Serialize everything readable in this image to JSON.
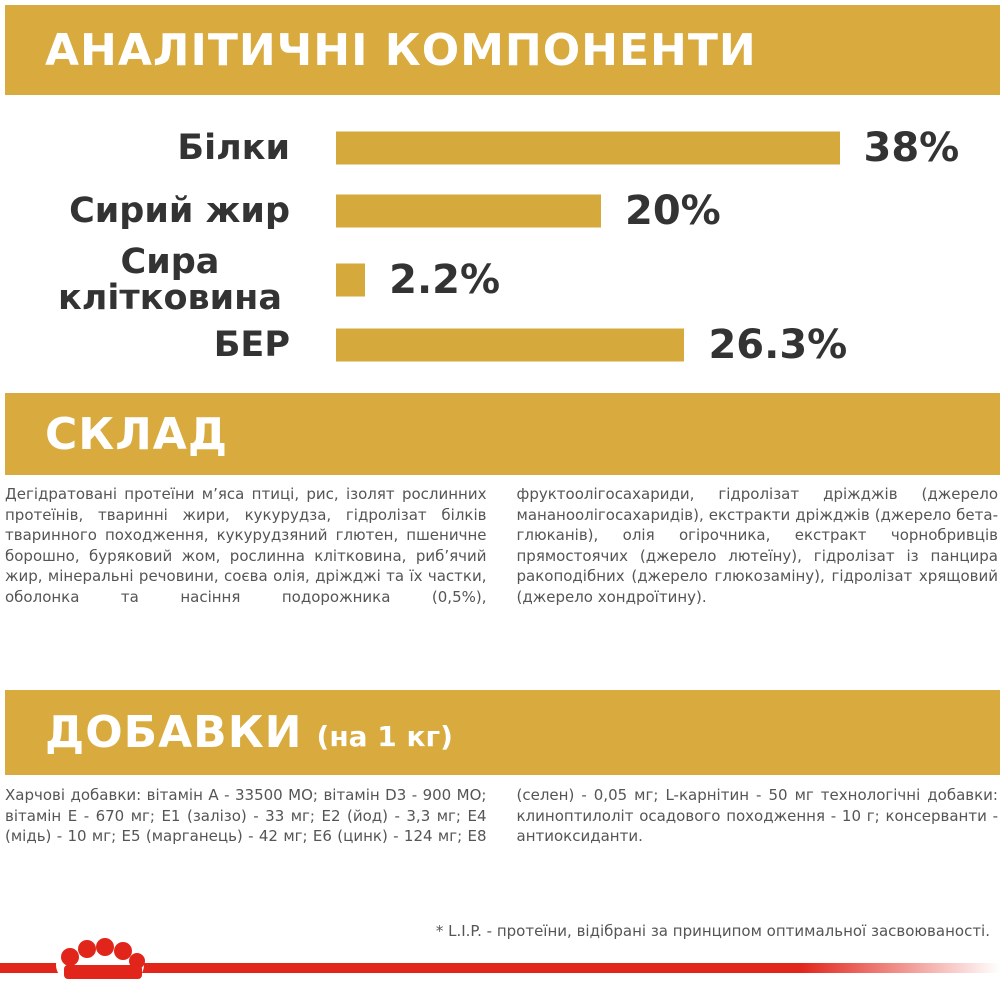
{
  "header": {
    "title": "АНАЛІТИЧНІ КОМПОНЕНТИ"
  },
  "chart_data": {
    "type": "bar",
    "orientation": "horizontal",
    "categories": [
      "Білки",
      "Сирий жир",
      "Сира клітковина",
      "БЕР"
    ],
    "values": [
      38,
      20,
      2.2,
      26.3
    ],
    "value_labels": [
      "38%",
      "20%",
      "2.2%",
      "26.3%"
    ],
    "color": "#d6a93c"
  },
  "composition": {
    "title": "СКЛАД",
    "text": "Дегідратовані протеїни м’яса птиці, рис, ізолят рослинних протеїнів, тваринні жири, кукурудза, гідролізат білків тваринного походження, кукурудзяний глютен, пшеничне борошно, буряковий жом, рослинна клітковина, риб’ячий жир, мінеральні речовини, соєва олія, дріжджі та їх частки, оболонка та насіння подорожника (0,5%), фруктоолігосахариди, гідролізат дріжджів (джерело мананоолігосахаридів), екстракти дріжджів (джерело бета-глюканів), олія огірочника, екстракт чорнобривців прямостоячих (джерело лютеїну), гідролізат із панцира ракоподібних (джерело глюкозаміну), гідролізат хрящовий (джерело хондроїтину)."
  },
  "additives": {
    "title": "ДОБАВКИ",
    "subtitle": "(на 1 кг)",
    "text": "Харчові добавки: вітамін A - 33500 МО; вітамін D3 - 900 МО; вітамін E - 670 мг; E1 (залізо) - 33 мг; E2 (йод) - 3,3 мг; E4 (мідь) - 10 мг; E5 (марганець) - 42 мг; E6 (цинк) - 124 мг; E8 (селен) - 0,05 мг; L-карнітин - 50 мг технологічні добавки: клиноптилоліт осадового походження - 10 г; консерванти - антиоксиданти."
  },
  "footnote": "* L.I.P. - протеїни, відібрані за принципом оптимальної засвоюваності."
}
